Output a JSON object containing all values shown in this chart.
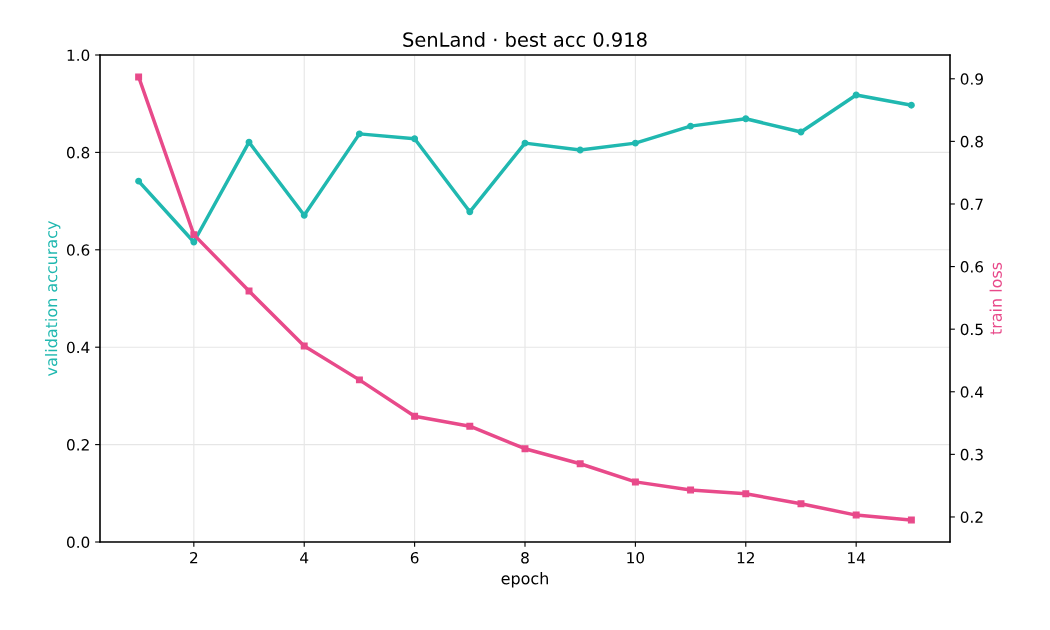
{
  "chart_data": {
    "type": "line",
    "title": "SenLand · best acc 0.918",
    "xlabel": "epoch",
    "ylabel": "validation accuracy",
    "y2label": "train loss",
    "x": [
      1,
      2,
      3,
      4,
      5,
      6,
      7,
      8,
      9,
      10,
      11,
      12,
      13,
      14,
      15
    ],
    "series": [
      {
        "color": "#20b8b0",
        "marker": "circle",
        "values": [
          0.741,
          0.616,
          0.821,
          0.671,
          0.838,
          0.828,
          0.678,
          0.819,
          0.805,
          0.819,
          0.854,
          0.869,
          0.842,
          0.918,
          0.897
        ]
      },
      {
        "color": "#e84a8a",
        "marker": "square",
        "axis": "y2",
        "values": [
          0.903,
          0.651,
          0.561,
          0.473,
          0.419,
          0.361,
          0.345,
          0.309,
          0.285,
          0.256,
          0.243,
          0.237,
          0.221,
          0.203,
          0.195
        ]
      }
    ],
    "xlim": [
      0.3,
      15.7
    ],
    "xticks": [
      2,
      4,
      6,
      8,
      10,
      12,
      14
    ],
    "ylim": [
      0,
      1
    ],
    "yticks": [
      {
        "value": 0,
        "label": "0.0"
      },
      0.2,
      0.4,
      0.6,
      0.8,
      {
        "value": 1,
        "label": "1.0"
      }
    ],
    "y2lim": [
      0.16,
      0.938
    ],
    "y2ticks": [
      0.2,
      0.3,
      0.4,
      0.5,
      0.6,
      0.7,
      0.8,
      0.9
    ],
    "grid": true,
    "legend": false,
    "line_style": "solid"
  }
}
